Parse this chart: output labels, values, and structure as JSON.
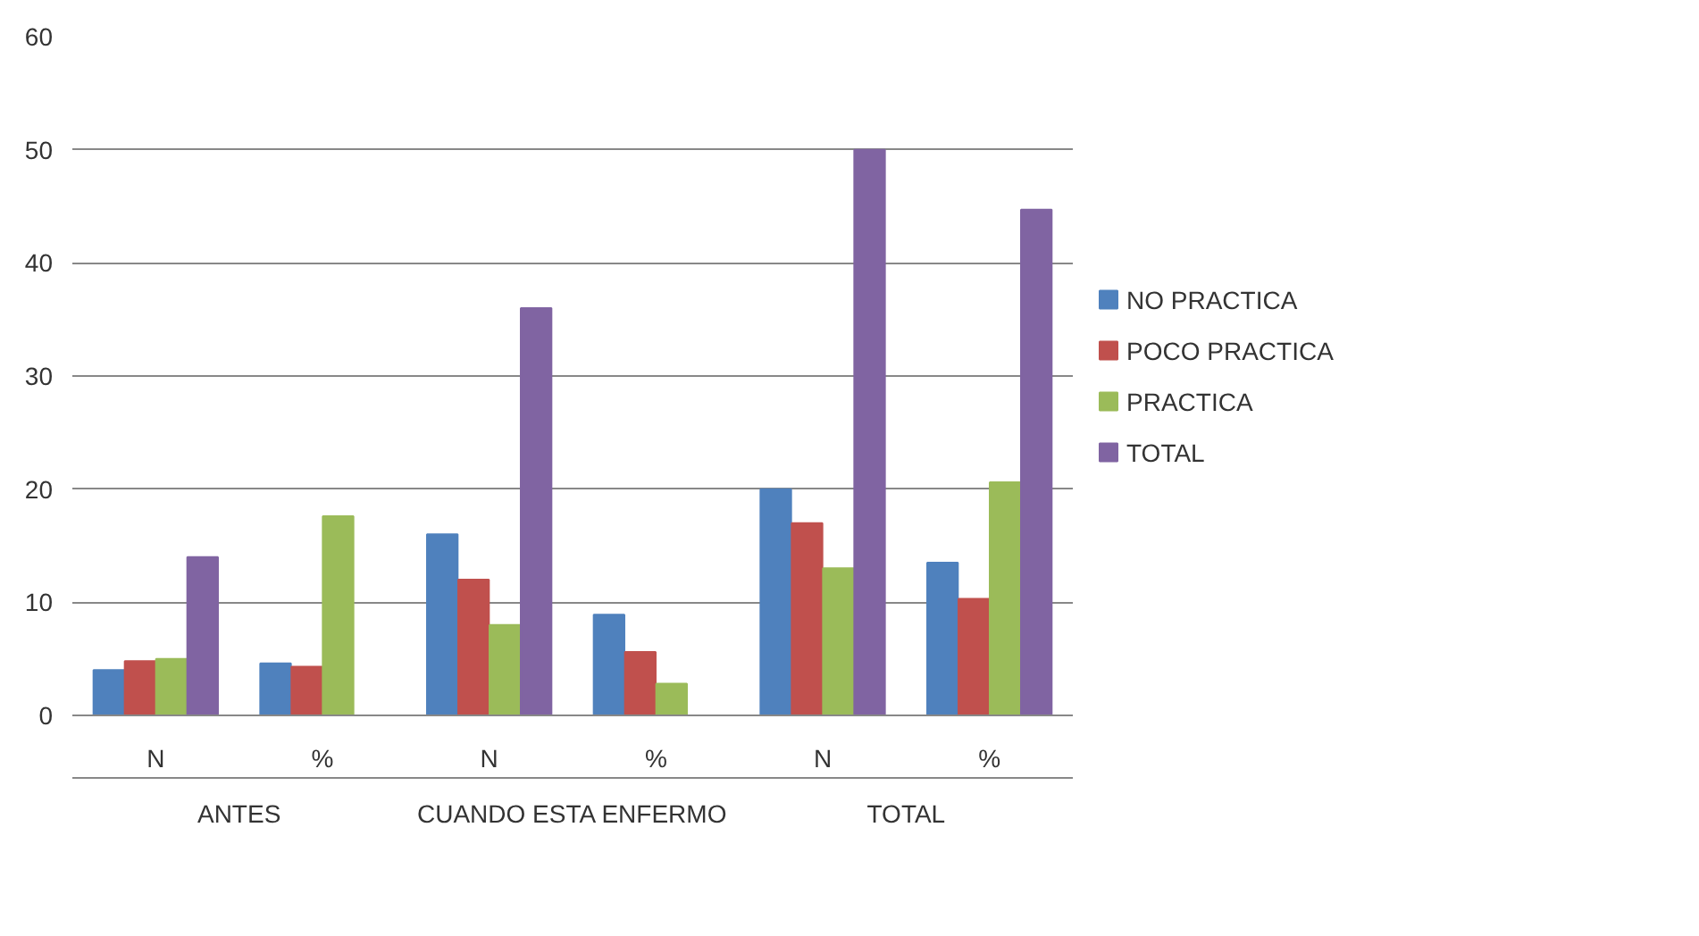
{
  "chart_data": {
    "type": "bar",
    "categories": [
      "N",
      "%",
      "N",
      "%",
      "N",
      "%"
    ],
    "annotations": [
      "ANTES",
      "CUANDO ESTA ENFERMO",
      "TOTAL"
    ],
    "series": [
      {
        "name": "NO PRACTICA",
        "color": "#4f81bd",
        "values": [
          4,
          4.6,
          16,
          8.9,
          20,
          13.5
        ]
      },
      {
        "name": "POCO PRACTICA",
        "color": "#c0504d",
        "values": [
          4.8,
          4.3,
          12,
          5.6,
          17,
          10.3
        ]
      },
      {
        "name": "PRACTICA",
        "color": "#9bbb59",
        "values": [
          5,
          17.6,
          8,
          2.8,
          13,
          20.6
        ]
      },
      {
        "name": "TOTAL",
        "color": "#8064a2",
        "values": [
          14,
          null,
          36,
          null,
          50,
          44.7
        ]
      }
    ],
    "ylim": [
      0,
      60
    ],
    "yticks": [
      0,
      10,
      20,
      30,
      40,
      50,
      60
    ],
    "grid": "y",
    "legend": "right"
  }
}
